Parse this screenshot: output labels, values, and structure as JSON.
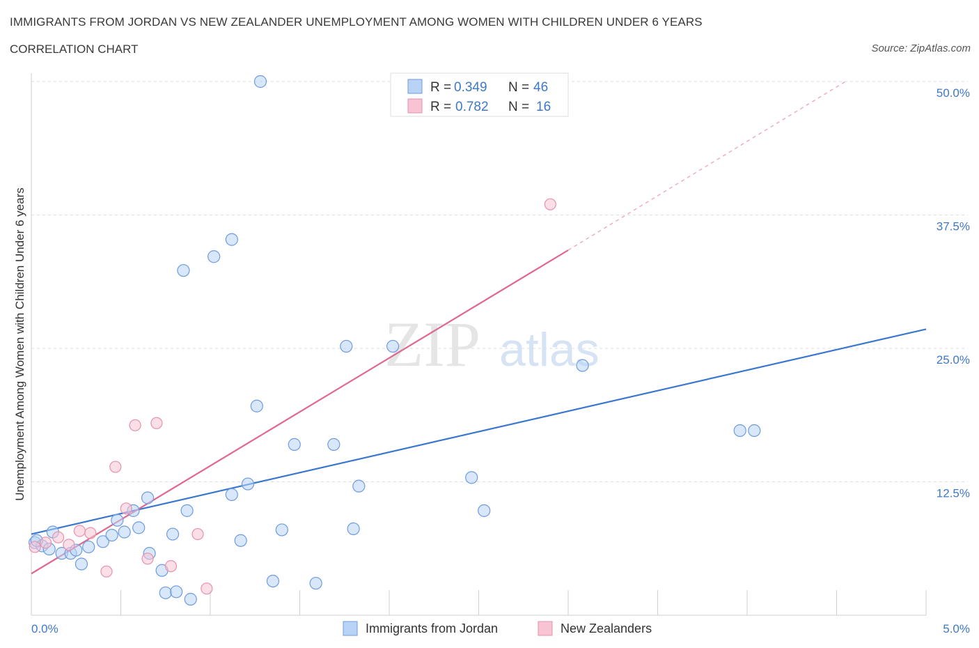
{
  "title": "IMMIGRANTS FROM JORDAN VS NEW ZEALANDER UNEMPLOYMENT AMONG WOMEN WITH CHILDREN UNDER 6 YEARS",
  "subtitle": "CORRELATION CHART",
  "source": "Source: ZipAtlas.com",
  "watermark": {
    "zip": "ZIP",
    "atlas": "atlas"
  },
  "colors": {
    "blue": "#3a77d0",
    "blue_fill": "#b8d3f5",
    "pink": "#e0688e",
    "pink_fill": "#f8c4d4",
    "axis_text": "#3e78c9"
  },
  "legend": {
    "items": [
      {
        "r_label": "R =",
        "r_value": "0.349",
        "n_label": "N =",
        "n_value": "46"
      },
      {
        "r_label": "R =",
        "r_value": "0.782",
        "n_label": "N =",
        "n_value": "16"
      }
    ]
  },
  "bottom_legend": [
    "Immigrants from Jordan",
    "New Zealanders"
  ],
  "chart_data": {
    "type": "scatter",
    "title": "IMMIGRANTS FROM JORDAN VS NEW ZEALANDER UNEMPLOYMENT AMONG WOMEN WITH CHILDREN UNDER 6 YEARS",
    "xlabel": "",
    "ylabel": "Unemployment Among Women with Children Under 6 years",
    "xlim": [
      0,
      5
    ],
    "ylim": [
      0,
      50
    ],
    "x_tick_labels": [
      "0.0%",
      "5.0%"
    ],
    "y_ticks": [
      12.5,
      25.0,
      37.5,
      50.0
    ],
    "y_tick_labels": [
      "12.5%",
      "25.0%",
      "37.5%",
      "50.0%"
    ],
    "grid": true,
    "legend_position": "top-center",
    "series": [
      {
        "name": "Immigrants from Jordan",
        "color": "#3a77d0",
        "R": 0.349,
        "N": 46,
        "trend": {
          "x0": 0,
          "y0": 7.6,
          "x1": 5,
          "y1": 26.8
        },
        "points": [
          [
            0.02,
            6.8
          ],
          [
            0.06,
            6.5
          ],
          [
            0.1,
            6.2
          ],
          [
            0.12,
            7.8
          ],
          [
            0.17,
            5.8
          ],
          [
            0.22,
            5.8
          ],
          [
            0.25,
            6.1
          ],
          [
            0.28,
            4.8
          ],
          [
            0.32,
            6.4
          ],
          [
            0.4,
            6.9
          ],
          [
            0.45,
            7.5
          ],
          [
            0.48,
            8.9
          ],
          [
            0.52,
            7.8
          ],
          [
            0.57,
            9.8
          ],
          [
            0.65,
            11.0
          ],
          [
            0.6,
            8.2
          ],
          [
            0.66,
            5.8
          ],
          [
            0.73,
            4.2
          ],
          [
            0.75,
            2.1
          ],
          [
            0.79,
            7.6
          ],
          [
            0.81,
            2.2
          ],
          [
            0.87,
            9.8
          ],
          [
            0.89,
            1.5
          ],
          [
            0.85,
            32.3
          ],
          [
            1.02,
            33.6
          ],
          [
            1.12,
            35.2
          ],
          [
            1.12,
            11.3
          ],
          [
            1.17,
            7.0
          ],
          [
            1.21,
            12.3
          ],
          [
            1.26,
            19.6
          ],
          [
            1.28,
            50.0
          ],
          [
            1.35,
            3.2
          ],
          [
            1.4,
            8.0
          ],
          [
            1.47,
            16.0
          ],
          [
            1.59,
            3.0
          ],
          [
            1.69,
            16.0
          ],
          [
            1.76,
            25.2
          ],
          [
            1.8,
            8.1
          ],
          [
            1.83,
            12.1
          ],
          [
            2.02,
            25.2
          ],
          [
            2.46,
            12.9
          ],
          [
            2.53,
            9.8
          ],
          [
            3.08,
            23.4
          ],
          [
            3.96,
            17.3
          ],
          [
            4.04,
            17.3
          ],
          [
            0.03,
            7.0
          ]
        ]
      },
      {
        "name": "New Zealanders",
        "color": "#e0688e",
        "R": 0.782,
        "N": 16,
        "trend": {
          "x0": 0,
          "y0": 3.9,
          "x1": 3.0,
          "y1": 34.2,
          "dashed_to_x": 4.55,
          "dashed_to_y": 50.0
        },
        "points": [
          [
            0.02,
            6.4
          ],
          [
            0.08,
            6.8
          ],
          [
            0.15,
            7.3
          ],
          [
            0.21,
            6.6
          ],
          [
            0.27,
            7.9
          ],
          [
            0.33,
            7.7
          ],
          [
            0.42,
            4.1
          ],
          [
            0.47,
            13.9
          ],
          [
            0.53,
            10.0
          ],
          [
            0.58,
            17.8
          ],
          [
            0.65,
            5.3
          ],
          [
            0.7,
            18.0
          ],
          [
            0.78,
            4.6
          ],
          [
            0.93,
            7.6
          ],
          [
            0.98,
            2.5
          ],
          [
            2.9,
            38.5
          ]
        ]
      }
    ]
  }
}
